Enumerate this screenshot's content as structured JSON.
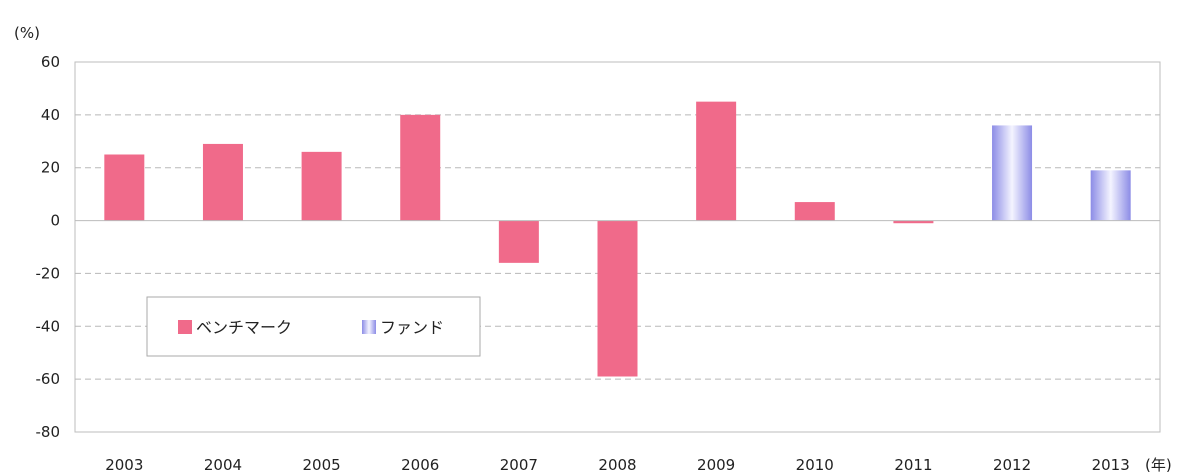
{
  "chart_data": {
    "type": "bar",
    "categories": [
      "2003",
      "2004",
      "2005",
      "2006",
      "2007",
      "2008",
      "2009",
      "2010",
      "2011",
      "2012",
      "2013"
    ],
    "values": [
      25,
      29,
      26,
      40,
      -16,
      -59,
      45,
      7,
      -1,
      36,
      19
    ],
    "bar_series": [
      "benchmark",
      "benchmark",
      "benchmark",
      "benchmark",
      "benchmark",
      "benchmark",
      "benchmark",
      "benchmark",
      "benchmark",
      "fund",
      "fund"
    ],
    "y_unit": "(%)",
    "x_unit": "(年)",
    "ylim": [
      -80,
      60
    ],
    "yticks": [
      60,
      40,
      20,
      0,
      -20,
      -40,
      -60,
      -80
    ],
    "grid": true,
    "legend": {
      "placement": "lower-left",
      "items": [
        {
          "key": "benchmark",
          "label": "ベンチマーク",
          "color": "#f06a8a"
        },
        {
          "key": "fund",
          "label": "ファンド",
          "color": "#aaaaee"
        }
      ]
    }
  }
}
